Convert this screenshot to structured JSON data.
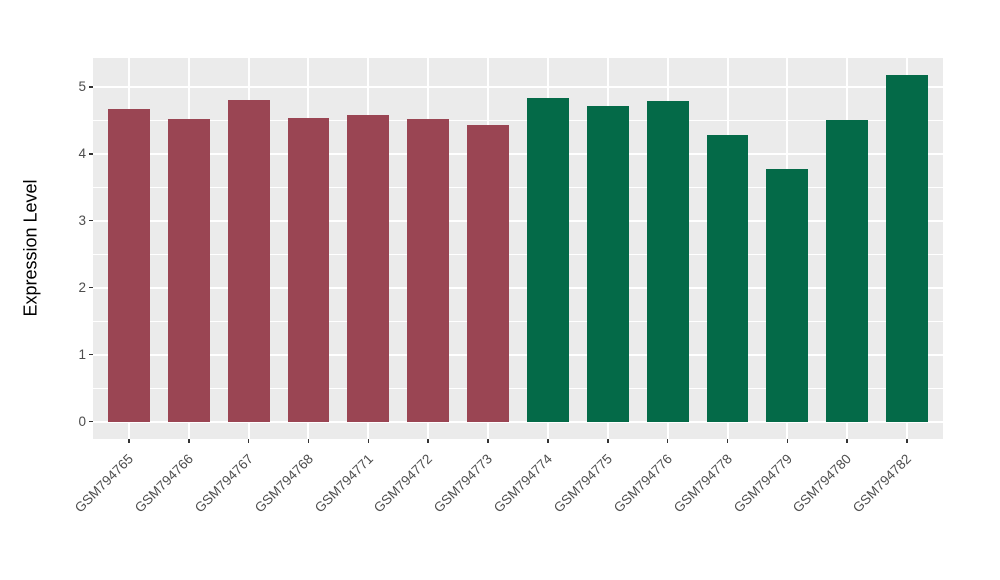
{
  "chart_data": {
    "type": "bar",
    "title": "",
    "xlabel": "",
    "ylabel": "Expression Level",
    "categories": [
      "GSM794765",
      "GSM794766",
      "GSM794767",
      "GSM794768",
      "GSM794771",
      "GSM794772",
      "GSM794773",
      "GSM794774",
      "GSM794775",
      "GSM794776",
      "GSM794778",
      "GSM794779",
      "GSM794780",
      "GSM794782"
    ],
    "values": [
      4.67,
      4.52,
      4.81,
      4.54,
      4.58,
      4.52,
      4.43,
      4.83,
      4.71,
      4.79,
      4.28,
      3.77,
      4.5,
      5.18
    ],
    "bar_groups": [
      "group1",
      "group1",
      "group1",
      "group1",
      "group1",
      "group1",
      "group1",
      "group2",
      "group2",
      "group2",
      "group2",
      "group2",
      "group2",
      "group2"
    ],
    "group_colors": {
      "group1": "#9A4553",
      "group2": "#046A48"
    },
    "y_tick_labels": [
      "0",
      "1",
      "2",
      "3",
      "4",
      "5"
    ],
    "y_major_breaks": [
      0,
      1,
      2,
      3,
      4,
      5
    ],
    "y_minor_breaks": [
      0.5,
      1.5,
      2.5,
      3.5,
      4.5
    ],
    "ylim": [
      -0.26,
      5.43
    ],
    "x_domain": [
      0.4,
      14.6
    ],
    "bar_width_units": 0.7,
    "grid": true,
    "legend_position": "none",
    "panel_background": "#EBEBEB",
    "grid_color": "#FFFFFF",
    "tick_label_color": "#4D4D4D",
    "axis_title_color": "#000000"
  }
}
